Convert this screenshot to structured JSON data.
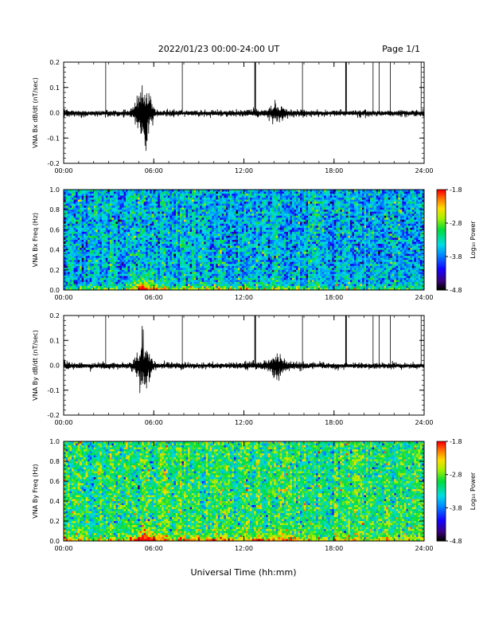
{
  "header": {
    "title": "2022/01/23  00:00-24:00 UT",
    "page": "Page 1/1"
  },
  "colors": {
    "trace": "#000000",
    "axis": "#000000",
    "background": "#ffffff"
  },
  "chart_data": [
    {
      "type": "line",
      "name": "bx-timeseries",
      "ylabel": "VNA Bx dB/dt (nT/sec)",
      "xlim": [
        0,
        24
      ],
      "ylim": [
        -0.2,
        0.2
      ],
      "yticks": [
        "0.2",
        "0.1",
        "0.0",
        "-0.1",
        "-0.2"
      ],
      "xticks": [
        "00:00",
        "06:00",
        "12:00",
        "18:00",
        "24:00"
      ],
      "spikes_hours": [
        2.8,
        7.9,
        12.75,
        15.9,
        18.8,
        20.6,
        21.0,
        21.75,
        23.8
      ],
      "bursts": [
        {
          "center_hours": 5.3,
          "amplitude": 0.09
        },
        {
          "center_hours": 14.3,
          "amplitude": 0.02
        }
      ],
      "baseline_noise": 0.008
    },
    {
      "type": "heatmap",
      "name": "bx-spectrogram",
      "ylabel": "VNA Bx Freq (Hz)",
      "xlim": [
        0,
        24
      ],
      "ylim": [
        0,
        1.0
      ],
      "yticks": [
        "1.0",
        "0.8",
        "0.6",
        "0.4",
        "0.2",
        "0.0"
      ],
      "xticks": [
        "00:00",
        "06:00",
        "12:00",
        "18:00",
        "24:00"
      ],
      "colorbar": {
        "label": "Log₁₀ Power",
        "ticks": [
          "-1.8",
          "-2.8",
          "-3.8",
          "-4.8"
        ],
        "range": [
          -4.8,
          -1.8
        ]
      },
      "typical_log_power": -3.6
    },
    {
      "type": "line",
      "name": "by-timeseries",
      "ylabel": "VNA By dB/dt (nT/sec)",
      "xlim": [
        0,
        24
      ],
      "ylim": [
        -0.2,
        0.2
      ],
      "yticks": [
        "0.2",
        "0.1",
        "0.0",
        "-0.1",
        "-0.2"
      ],
      "xticks": [
        "00:00",
        "06:00",
        "12:00",
        "18:00",
        "24:00"
      ],
      "spikes_hours": [
        2.8,
        7.9,
        12.75,
        15.9,
        18.8,
        20.6,
        21.0,
        21.75,
        23.8
      ],
      "bursts": [
        {
          "center_hours": 5.3,
          "amplitude": 0.08
        },
        {
          "center_hours": 14.2,
          "amplitude": 0.03
        }
      ],
      "baseline_noise": 0.008
    },
    {
      "type": "heatmap",
      "name": "by-spectrogram",
      "ylabel": "VNA By Freq (Hz)",
      "xlim": [
        0,
        24
      ],
      "ylim": [
        0,
        1.0
      ],
      "yticks": [
        "1.0",
        "0.8",
        "0.6",
        "0.4",
        "0.2",
        "0.0"
      ],
      "xticks": [
        "00:00",
        "06:00",
        "12:00",
        "18:00",
        "24:00"
      ],
      "colorbar": {
        "label": "Log₁₀ Power",
        "ticks": [
          "-1.8",
          "-2.8",
          "-3.8",
          "-4.8"
        ],
        "range": [
          -4.8,
          -1.8
        ]
      },
      "typical_log_power": -3.1
    }
  ],
  "footer": {
    "xlabel": "Universal Time (hh:mm)"
  }
}
